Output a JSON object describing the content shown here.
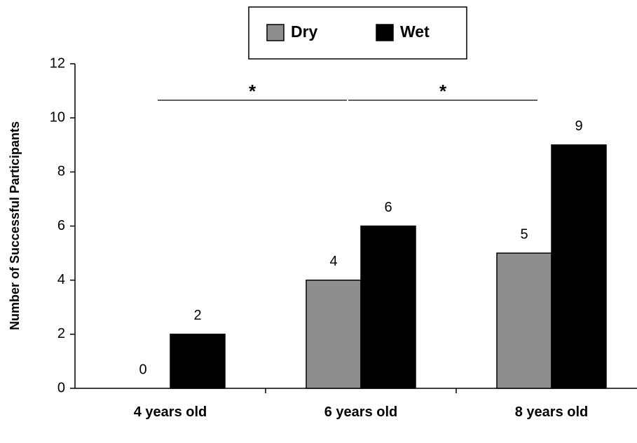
{
  "chart_data": {
    "type": "bar",
    "y_label": "Number of Successful Participants",
    "categories": [
      "4 years old",
      "6 years old",
      "8 years old"
    ],
    "series": [
      {
        "name": "Dry",
        "color": "#8e8e8e",
        "values": [
          0,
          4,
          5
        ]
      },
      {
        "name": "Wet",
        "color": "#000000",
        "values": [
          2,
          6,
          9
        ]
      }
    ],
    "ylim": [
      0,
      12
    ],
    "yticks": [
      0,
      2,
      4,
      6,
      8,
      10,
      12
    ],
    "legend": "top",
    "annotations": [
      "*",
      "*"
    ]
  }
}
